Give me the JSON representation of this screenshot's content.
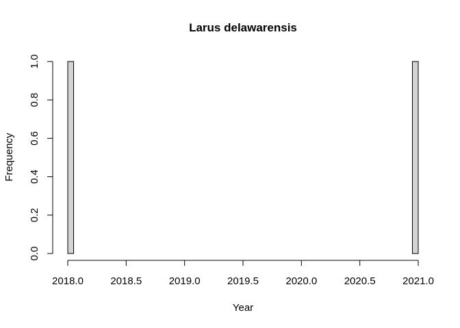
{
  "chart_data": {
    "type": "bar",
    "title": "Larus delawarensis",
    "xlabel": "Year",
    "ylabel": "Frequency",
    "xlim": [
      2018.0,
      2021.0
    ],
    "ylim": [
      0,
      1.0
    ],
    "x_ticks": [
      2018.0,
      2018.5,
      2019.0,
      2019.5,
      2020.0,
      2020.5,
      2021.0
    ],
    "x_tick_labels": [
      "2018.0",
      "2018.5",
      "2019.0",
      "2019.5",
      "2020.0",
      "2020.5",
      "2021.0"
    ],
    "y_ticks": [
      0.0,
      0.2,
      0.4,
      0.6,
      0.8,
      1.0
    ],
    "y_tick_labels": [
      "0.0",
      "0.2",
      "0.4",
      "0.6",
      "0.8",
      "1.0"
    ],
    "bin_width": 0.05,
    "bins": [
      {
        "start": 2018.0,
        "end": 2018.05,
        "value": 1
      },
      {
        "start": 2020.95,
        "end": 2021.0,
        "value": 1
      }
    ],
    "bar_fill": "#d3d3d3",
    "bar_stroke": "#000000",
    "grid": false,
    "legend": "none"
  }
}
